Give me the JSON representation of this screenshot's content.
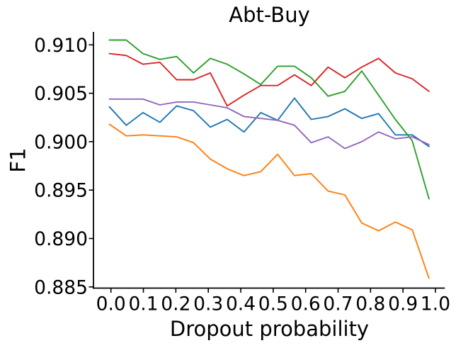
{
  "chart_data": {
    "type": "line",
    "title": "Abt-Buy",
    "xlabel": "Dropout probability",
    "ylabel": "F1",
    "grid": false,
    "legend": "none",
    "x_tick_labels": [
      "0.0",
      "0.1",
      "0.2",
      "0.3",
      "0.4",
      "0.5",
      "0.6",
      "0.7",
      "0.8",
      "0.9",
      "1.0"
    ],
    "y_tick_labels": [
      "0.885",
      "0.890",
      "0.895",
      "0.900",
      "0.905",
      "0.910"
    ],
    "xlim": [
      -0.05,
      1.03
    ],
    "ylim": [
      0.885,
      0.9113
    ],
    "x": [
      0.0,
      0.05,
      0.1,
      0.15,
      0.2,
      0.25,
      0.3,
      0.35,
      0.4,
      0.45,
      0.5,
      0.55,
      0.6,
      0.65,
      0.7,
      0.75,
      0.8,
      0.85,
      0.9,
      0.95
    ],
    "series": [
      {
        "name": "blue-line",
        "color": "#1f77b4",
        "values": [
          0.9036,
          0.9017,
          0.903,
          0.902,
          0.9037,
          0.9032,
          0.9015,
          0.9023,
          0.901,
          0.903,
          0.9022,
          0.9045,
          0.9023,
          0.9026,
          0.9034,
          0.9024,
          0.9029,
          0.9007,
          0.9007,
          0.8995
        ]
      },
      {
        "name": "orange-line",
        "color": "#ff7f0e",
        "values": [
          0.9018,
          0.9006,
          0.9007,
          0.9006,
          0.9005,
          0.8999,
          0.8982,
          0.8972,
          0.8965,
          0.8969,
          0.8987,
          0.8965,
          0.8967,
          0.8949,
          0.8945,
          0.8916,
          0.8908,
          0.8917,
          0.8909,
          0.8859
        ]
      },
      {
        "name": "green-line",
        "color": "#2ca02c",
        "values": [
          0.9105,
          0.9105,
          0.9091,
          0.9085,
          0.9088,
          0.9071,
          0.9086,
          0.908,
          0.907,
          0.9059,
          0.9078,
          0.9078,
          0.9066,
          0.9047,
          0.9052,
          0.9073,
          0.9048,
          0.9023,
          0.9001,
          0.8941
        ]
      },
      {
        "name": "red-line",
        "color": "#d62728",
        "values": [
          0.9091,
          0.9089,
          0.908,
          0.9082,
          0.9064,
          0.9064,
          0.9071,
          0.9037,
          0.9048,
          0.9058,
          0.9058,
          0.9069,
          0.9058,
          0.9077,
          0.9066,
          0.9077,
          0.9086,
          0.9071,
          0.9065,
          0.9052
        ]
      },
      {
        "name": "purple-line",
        "color": "#9467bd",
        "values": [
          0.9044,
          0.9044,
          0.9044,
          0.9038,
          0.9041,
          0.9041,
          0.9038,
          0.9035,
          0.9026,
          0.9024,
          0.9022,
          0.9017,
          0.8999,
          0.9005,
          0.8993,
          0.9,
          0.901,
          0.9003,
          0.9005,
          0.8997
        ]
      }
    ]
  }
}
